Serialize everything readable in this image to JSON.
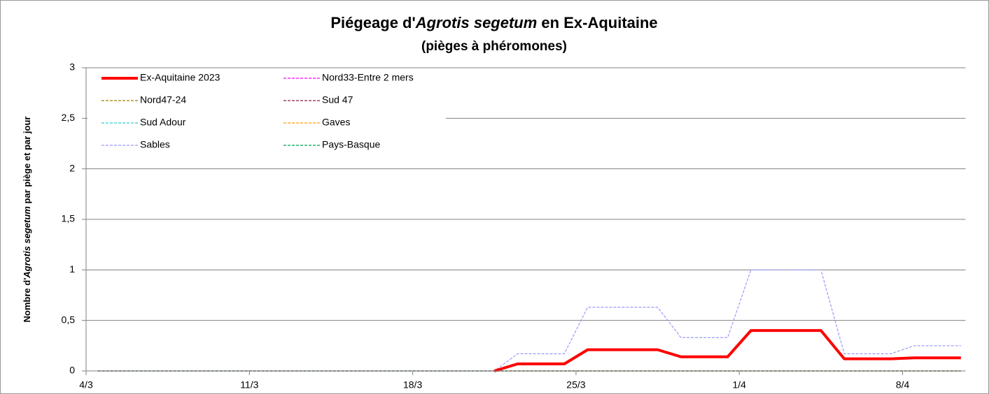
{
  "chart_data": {
    "type": "line",
    "title_parts": [
      "Piégeage d'",
      "Agrotis segetum",
      " en Ex-Aquitaine"
    ],
    "subtitle": "(pièges à phéromones)",
    "y_label_parts": [
      "Nombre d'",
      "Agrotis segetum",
      " par piège et par jour"
    ],
    "categories": [
      "4/3",
      null,
      null,
      null,
      null,
      null,
      null,
      "11/3",
      null,
      null,
      null,
      null,
      null,
      null,
      "18/3",
      null,
      null,
      null,
      null,
      null,
      null,
      "25/3",
      null,
      null,
      null,
      null,
      null,
      null,
      "1/4",
      null,
      null,
      null,
      null,
      null,
      null,
      "8/4",
      null,
      null
    ],
    "ylim": [
      0,
      3
    ],
    "yticks": [
      0,
      {
        "value": 0.5,
        "label": "0,5"
      },
      1,
      {
        "value": 1.5,
        "label": "1,5"
      },
      2,
      {
        "value": 2.5,
        "label": "2,5"
      },
      3
    ],
    "grid": true,
    "legend": "top-left",
    "series": [
      {
        "name": "Ex-Aquitaine 2023",
        "color": "#ff0000",
        "values": [
          null,
          null,
          null,
          null,
          null,
          null,
          null,
          null,
          null,
          null,
          null,
          null,
          null,
          null,
          null,
          null,
          null,
          0,
          0.07,
          0.07,
          0.07,
          0.21,
          0.21,
          0.21,
          0.21,
          0.14,
          0.14,
          0.14,
          0.4,
          0.4,
          0.4,
          0.4,
          0.12,
          0.12,
          0.12,
          0.13,
          0.13,
          0.13
        ]
      },
      {
        "name": "Nord33-Entre 2 mers",
        "color": "#ff00ff",
        "values": [
          0,
          0,
          0,
          0,
          0,
          0,
          0,
          0,
          0,
          0,
          0,
          0,
          0,
          0,
          0,
          0,
          0,
          0,
          0,
          0,
          0,
          0,
          0,
          0,
          0,
          0,
          0,
          0,
          0,
          0,
          0,
          0,
          0,
          0,
          0,
          0,
          0,
          0
        ]
      },
      {
        "name": "Nord47-24",
        "color": "#998000",
        "values": [
          0,
          0,
          0,
          0,
          0,
          0,
          0,
          0,
          0,
          0,
          0,
          0,
          0,
          0,
          0,
          0,
          0,
          0,
          0,
          0,
          0,
          0,
          0,
          0,
          0,
          0,
          0,
          0,
          0,
          0,
          0,
          0,
          0,
          0,
          0,
          0,
          0,
          0
        ]
      },
      {
        "name": "Sud 47",
        "color": "#8b1a4a",
        "values": [
          0,
          0,
          0,
          0,
          0,
          0,
          0,
          0,
          0,
          0,
          0,
          0,
          0,
          0,
          0,
          0,
          0,
          0,
          0,
          0,
          0,
          0,
          0,
          0,
          0,
          0,
          0,
          0,
          0,
          0,
          0,
          0,
          0,
          0,
          0,
          0,
          0,
          0
        ]
      },
      {
        "name": "Sud Adour",
        "color": "#33cccc",
        "values": [
          0,
          0,
          0,
          0,
          0,
          0,
          0,
          0,
          0,
          0,
          0,
          0,
          0,
          0,
          0,
          0,
          0,
          0,
          0,
          0,
          0,
          0,
          0,
          0,
          0,
          0,
          0,
          0,
          0,
          0,
          0,
          0,
          0,
          0,
          0,
          0,
          0,
          0
        ]
      },
      {
        "name": "Gaves",
        "color": "#ff9900",
        "values": [
          0,
          0,
          0,
          0,
          0,
          0,
          0,
          0,
          0,
          0,
          0,
          0,
          0,
          0,
          0,
          0,
          0,
          0,
          0,
          0,
          0,
          0,
          0,
          0,
          0,
          0,
          0,
          0,
          0,
          0,
          0,
          0,
          0,
          0,
          0,
          0,
          0,
          0
        ]
      },
      {
        "name": "Sables",
        "color": "#9999ff",
        "values": [
          0,
          0,
          0,
          0,
          0,
          0,
          0,
          0,
          0,
          0,
          0,
          0,
          0,
          0,
          0,
          0,
          0,
          0,
          0.17,
          0.17,
          0.17,
          0.63,
          0.63,
          0.63,
          0.63,
          0.33,
          0.33,
          0.33,
          1,
          1,
          1,
          1,
          0.17,
          0.17,
          0.17,
          0.25,
          0.25,
          0.25
        ]
      },
      {
        "name": "Pays-Basque",
        "color": "#00a050",
        "values": [
          0,
          0,
          0,
          0,
          0,
          0,
          0,
          0,
          0,
          0,
          0,
          0,
          0,
          0,
          0,
          0,
          0,
          0,
          0,
          0,
          0,
          0,
          0,
          0,
          0,
          0,
          0,
          0,
          0,
          0,
          0,
          0,
          0,
          0,
          0,
          0,
          0,
          0
        ]
      }
    ]
  }
}
